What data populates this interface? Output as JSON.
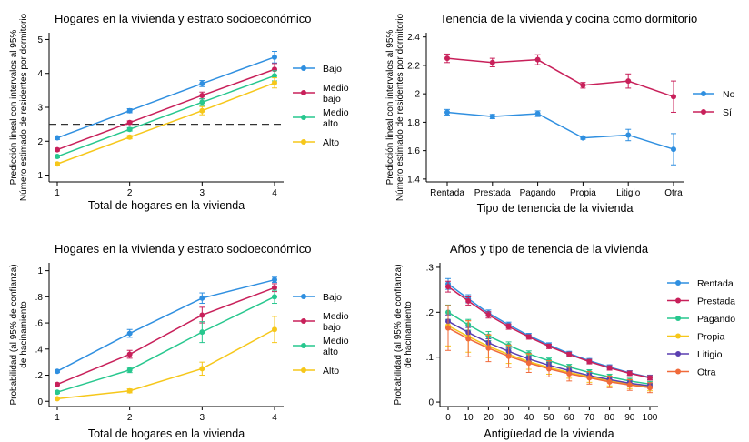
{
  "chart_data": [
    {
      "type": "line",
      "title": "Hogares en la vivienda y estrato socioeconómico",
      "ylabel": [
        "Predicción lineal con intervalos al 95%",
        "Número estimado de residentes por dormitorio"
      ],
      "xlabel": "Total de hogares en la vivienda",
      "x": [
        1,
        2,
        3,
        4
      ],
      "x_ticks": [
        "1",
        "2",
        "3",
        "4"
      ],
      "ylim": [
        0.8,
        5.2
      ],
      "y_ticks": [
        1,
        2,
        3,
        4,
        5
      ],
      "y_tick_labels": [
        "1",
        "2",
        "3",
        "4",
        "5"
      ],
      "reference_line": 2.5,
      "legend_position": "right",
      "series": [
        {
          "name": "Bajo",
          "color": "#2f8fe0",
          "values": [
            2.1,
            2.9,
            3.7,
            4.48
          ],
          "ci": [
            0.05,
            0.06,
            0.09,
            0.17
          ]
        },
        {
          "name": "Medio\nbajo",
          "color": "#c8205a",
          "values": [
            1.75,
            2.55,
            3.35,
            4.12
          ],
          "ci": [
            0.04,
            0.05,
            0.1,
            0.17
          ]
        },
        {
          "name": "Medio\nalto",
          "color": "#27c78e",
          "values": [
            1.55,
            2.35,
            3.15,
            3.93
          ],
          "ci": [
            0.04,
            0.05,
            0.1,
            0.15
          ]
        },
        {
          "name": "Alto",
          "color": "#f6c71a",
          "values": [
            1.33,
            2.12,
            2.9,
            3.72
          ],
          "ci": [
            0.04,
            0.05,
            0.12,
            0.15
          ]
        }
      ]
    },
    {
      "type": "line",
      "title": "Tenencia de la vivienda y cocina como dormitorio",
      "ylabel": [
        "Predicción lineal con intervalos al 95%",
        "Número estimado de residentes por dormitorio"
      ],
      "xlabel": "Tipo de tenencia de la vivienda",
      "categories": [
        "Rentada",
        "Prestada",
        "Pagando",
        "Propia",
        "Litigio",
        "Otra"
      ],
      "ylim": [
        1.38,
        2.43
      ],
      "y_ticks": [
        1.4,
        1.6,
        1.8,
        2.0,
        2.2,
        2.4
      ],
      "y_tick_labels": [
        "1.4",
        "1.6",
        "1.8",
        "2",
        "2.2",
        "2.4"
      ],
      "legend_position": "right",
      "series": [
        {
          "name": "No",
          "color": "#2f8fe0",
          "values": [
            1.87,
            1.84,
            1.86,
            1.69,
            1.71,
            1.61
          ],
          "ci": [
            0.02,
            0.015,
            0.02,
            0.01,
            0.04,
            0.11
          ]
        },
        {
          "name": "Sí",
          "color": "#c8205a",
          "values": [
            2.25,
            2.22,
            2.24,
            2.06,
            2.09,
            1.98
          ],
          "ci": [
            0.03,
            0.03,
            0.035,
            0.02,
            0.05,
            0.11
          ]
        }
      ]
    },
    {
      "type": "line",
      "title": "Hogares en la vivienda y estrato socioeconómico",
      "ylabel": [
        "Probabilidad (al 95% de confianza)",
        "de hacinamiento"
      ],
      "xlabel": "Total de hogares en la vivienda",
      "x": [
        1,
        2,
        3,
        4
      ],
      "x_ticks": [
        "1",
        "2",
        "3",
        "4"
      ],
      "ylim": [
        -0.04,
        1.06
      ],
      "y_ticks": [
        0,
        0.2,
        0.4,
        0.6,
        0.8,
        1
      ],
      "y_tick_labels": [
        "0",
        ".2",
        ".4",
        ".6",
        ".8",
        "1"
      ],
      "legend_position": "right",
      "series": [
        {
          "name": "Bajo",
          "color": "#2f8fe0",
          "values": [
            0.23,
            0.52,
            0.79,
            0.93
          ],
          "ci": [
            0.01,
            0.03,
            0.04,
            0.02
          ]
        },
        {
          "name": "Medio\nbajo",
          "color": "#c8205a",
          "values": [
            0.13,
            0.36,
            0.66,
            0.87
          ],
          "ci": [
            0.01,
            0.03,
            0.06,
            0.03
          ]
        },
        {
          "name": "Medio\nalto",
          "color": "#27c78e",
          "values": [
            0.07,
            0.24,
            0.53,
            0.8
          ],
          "ci": [
            0.01,
            0.02,
            0.08,
            0.05
          ]
        },
        {
          "name": "Alto",
          "color": "#f6c71a",
          "values": [
            0.02,
            0.08,
            0.25,
            0.55
          ],
          "ci": [
            0.005,
            0.015,
            0.05,
            0.1
          ]
        }
      ]
    },
    {
      "type": "line",
      "title": "Años y tipo de tenencia de la vivienda",
      "ylabel": [
        "Probabilidad (al 95% de confianza)",
        "de hacinamiento"
      ],
      "xlabel": "Antigüedad de la vivienda",
      "x": [
        0,
        10,
        20,
        30,
        40,
        50,
        60,
        70,
        80,
        90,
        100
      ],
      "x_ticks": [
        "0",
        "10",
        "20",
        "30",
        "40",
        "50",
        "60",
        "70",
        "80",
        "90",
        "100"
      ],
      "ylim": [
        -0.01,
        0.31
      ],
      "y_ticks": [
        0,
        0.1,
        0.2,
        0.3
      ],
      "y_tick_labels": [
        "0",
        ".1",
        ".2",
        ".3"
      ],
      "legend_position": "right",
      "series": [
        {
          "name": "Rentada",
          "color": "#2f8fe0",
          "values": [
            0.263,
            0.23,
            0.198,
            0.172,
            0.148,
            0.127,
            0.108,
            0.092,
            0.078,
            0.065,
            0.055
          ],
          "ci": [
            0.012,
            0.009,
            0.007,
            0.006,
            0.005,
            0.005,
            0.005,
            0.005,
            0.005,
            0.005,
            0.005
          ]
        },
        {
          "name": "Prestada",
          "color": "#c8205a",
          "values": [
            0.257,
            0.225,
            0.194,
            0.168,
            0.145,
            0.124,
            0.106,
            0.09,
            0.076,
            0.064,
            0.054
          ],
          "ci": [
            0.012,
            0.009,
            0.007,
            0.006,
            0.005,
            0.005,
            0.005,
            0.005,
            0.005,
            0.005,
            0.005
          ]
        },
        {
          "name": "Pagando",
          "color": "#27c78e",
          "values": [
            0.2,
            0.172,
            0.147,
            0.126,
            0.107,
            0.092,
            0.078,
            0.066,
            0.056,
            0.047,
            0.04
          ],
          "ci": [
            0.016,
            0.012,
            0.01,
            0.008,
            0.007,
            0.006,
            0.006,
            0.006,
            0.006,
            0.006,
            0.006
          ]
        },
        {
          "name": "Propia",
          "color": "#f6c71a",
          "values": [
            0.17,
            0.146,
            0.124,
            0.106,
            0.09,
            0.077,
            0.066,
            0.056,
            0.047,
            0.04,
            0.034
          ],
          "ci": [
            0.045,
            0.035,
            0.025,
            0.02,
            0.017,
            0.015,
            0.013,
            0.012,
            0.011,
            0.01,
            0.009
          ]
        },
        {
          "name": "Litigio",
          "color": "#5a3fb0",
          "values": [
            0.18,
            0.155,
            0.132,
            0.113,
            0.096,
            0.082,
            0.07,
            0.059,
            0.05,
            0.042,
            0.036
          ],
          "ci": [
            0.014,
            0.011,
            0.009,
            0.007,
            0.006,
            0.006,
            0.005,
            0.005,
            0.005,
            0.005,
            0.005
          ]
        },
        {
          "name": "Otra",
          "color": "#f06a3a",
          "values": [
            0.165,
            0.141,
            0.12,
            0.102,
            0.087,
            0.074,
            0.063,
            0.054,
            0.045,
            0.038,
            0.032
          ],
          "ci": [
            0.05,
            0.04,
            0.03,
            0.025,
            0.021,
            0.018,
            0.016,
            0.014,
            0.013,
            0.012,
            0.011
          ]
        }
      ]
    }
  ]
}
